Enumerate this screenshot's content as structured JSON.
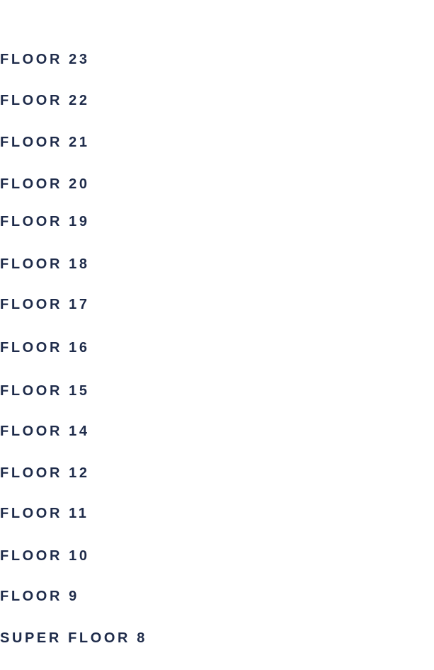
{
  "floors": [
    {
      "label": "FLOOR 23"
    },
    {
      "label": "FLOOR 22"
    },
    {
      "label": "FLOOR 21"
    },
    {
      "label": "FLOOR 20"
    },
    {
      "label": "FLOOR 19"
    },
    {
      "label": "FLOOR 18"
    },
    {
      "label": "FLOOR 17"
    },
    {
      "label": "FLOOR 16"
    },
    {
      "label": "FLOOR 15"
    },
    {
      "label": "FLOOR 14"
    },
    {
      "label": "FLOOR 12"
    },
    {
      "label": "FLOOR 11"
    },
    {
      "label": "FLOOR 10"
    },
    {
      "label": "FLOOR 9"
    },
    {
      "label": "SUPER FLOOR 8"
    }
  ],
  "colors": {
    "text": "#1e2b4a",
    "background": "#ffffff"
  }
}
